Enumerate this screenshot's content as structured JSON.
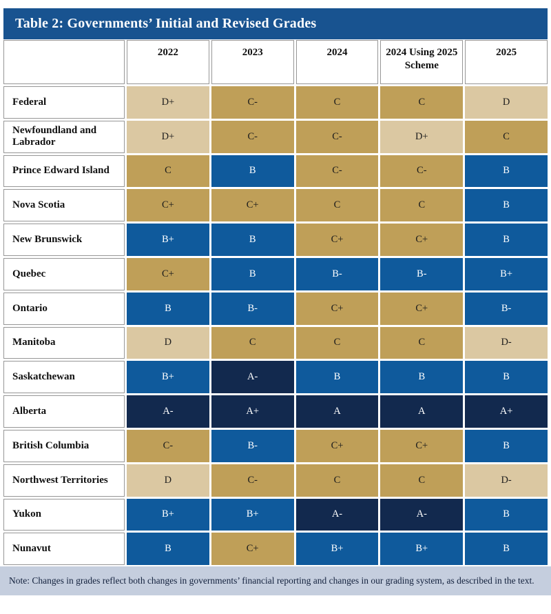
{
  "title": "Table 2: Governments’ Initial and Revised Grades",
  "note": "Note: Changes in grades reflect both changes in governments’ financial reporting and changes in our grading system, as described in the text.",
  "colors": {
    "title_bar_bg": "#185390",
    "note_bg": "#C5CEDE",
    "cell_border": "#969696",
    "page_bg": "#FFFFFF"
  },
  "chart_data": {
    "type": "table",
    "title": "Table 2: Governments’ Initial and Revised Grades",
    "columns": [
      "2022",
      "2023",
      "2024",
      "2024 Using 2025 Scheme",
      "2025"
    ],
    "rows": [
      {
        "label": "Federal",
        "grades": [
          "D+",
          "C-",
          "C",
          "C",
          "D"
        ]
      },
      {
        "label": "Newfoundland and Labrador",
        "grades": [
          "D+",
          "C-",
          "C-",
          "D+",
          "C"
        ]
      },
      {
        "label": "Prince Edward Island",
        "grades": [
          "C",
          "B",
          "C-",
          "C-",
          "B"
        ]
      },
      {
        "label": "Nova Scotia",
        "grades": [
          "C+",
          "C+",
          "C",
          "C",
          "B"
        ]
      },
      {
        "label": "New Brunswick",
        "grades": [
          "B+",
          "B",
          "C+",
          "C+",
          "B"
        ]
      },
      {
        "label": "Quebec",
        "grades": [
          "C+",
          "B",
          "B-",
          "B-",
          "B+"
        ]
      },
      {
        "label": "Ontario",
        "grades": [
          "B",
          "B-",
          "C+",
          "C+",
          "B-"
        ]
      },
      {
        "label": "Manitoba",
        "grades": [
          "D",
          "C",
          "C",
          "C",
          "D-"
        ]
      },
      {
        "label": "Saskatchewan",
        "grades": [
          "B+",
          "A-",
          "B",
          "B",
          "B"
        ]
      },
      {
        "label": "Alberta",
        "grades": [
          "A-",
          "A+",
          "A",
          "A",
          "A+"
        ]
      },
      {
        "label": "British Columbia",
        "grades": [
          "C-",
          "B-",
          "C+",
          "C+",
          "B"
        ]
      },
      {
        "label": "Northwest Territories",
        "grades": [
          "D",
          "C-",
          "C",
          "C",
          "D-"
        ]
      },
      {
        "label": "Yukon",
        "grades": [
          "B+",
          "B+",
          "A-",
          "A-",
          "B"
        ]
      },
      {
        "label": "Nunavut",
        "grades": [
          "B",
          "C+",
          "B+",
          "B+",
          "B"
        ]
      }
    ],
    "color_coding": {
      "A": {
        "bg": "#12294E",
        "text": "#FFFFFF"
      },
      "B": {
        "bg": "#0F5A9C",
        "text": "#FFFFFF"
      },
      "C": {
        "bg": "#BF9F58",
        "text": "#1C1C1C"
      },
      "D": {
        "bg": "#DBC8A2",
        "text": "#1C1C1C"
      }
    },
    "note": "Note: Changes in grades reflect both changes in governments’ financial reporting and changes in our grading system, as described in the text."
  }
}
